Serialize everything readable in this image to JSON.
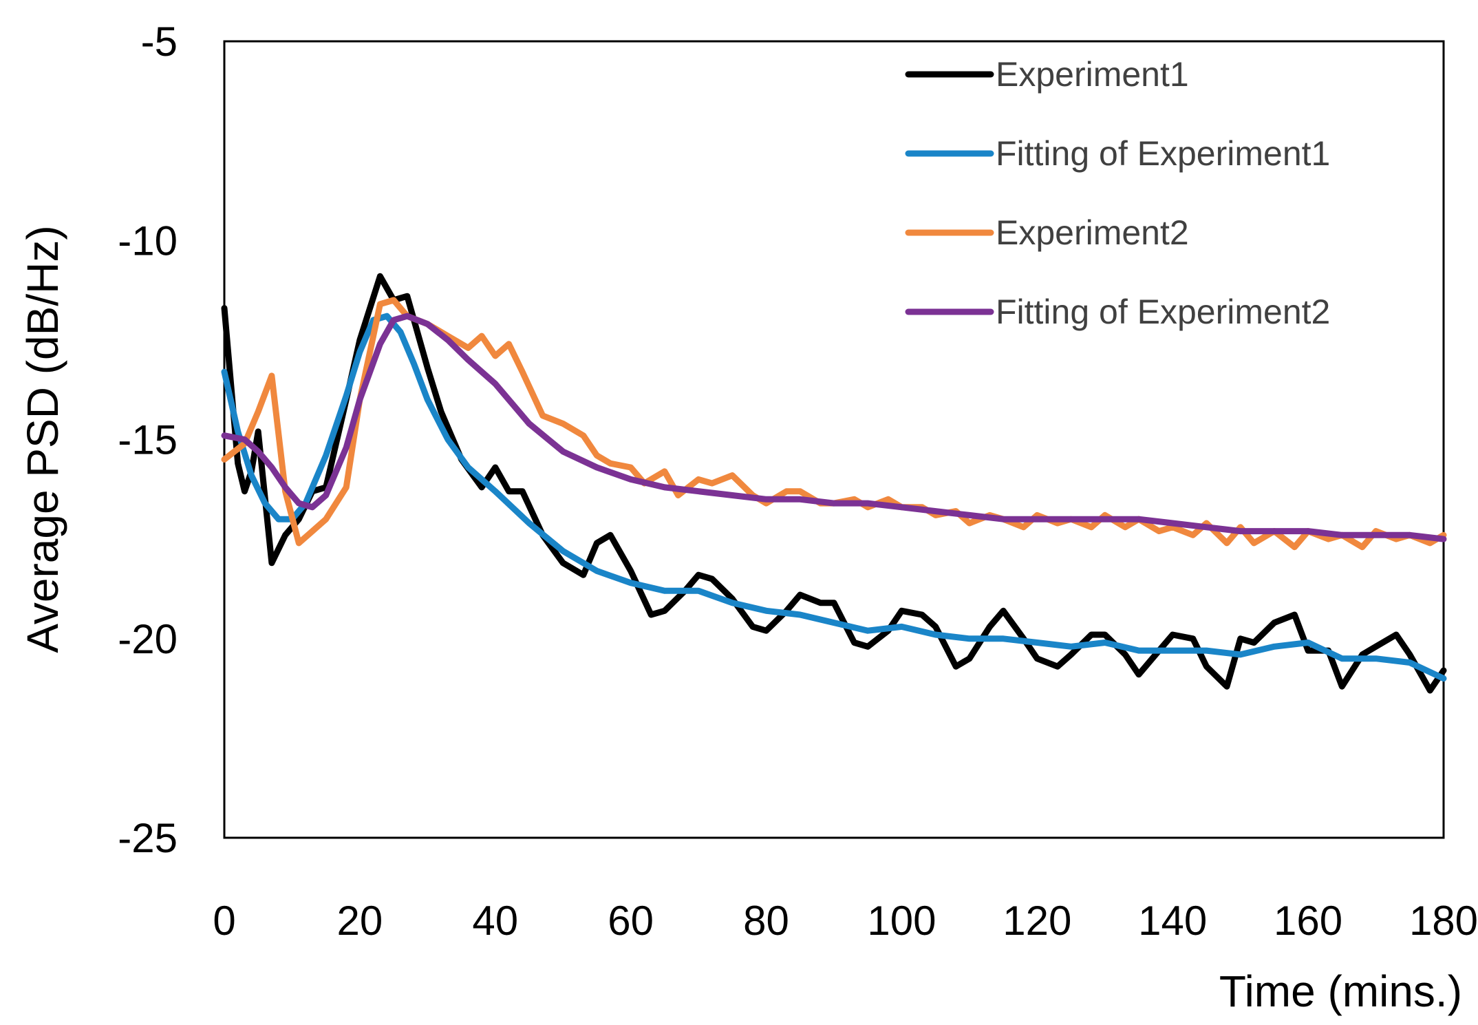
{
  "chart_data": {
    "type": "line",
    "title": "",
    "xlabel": "Time (mins.)",
    "ylabel": "Average PSD (dB/Hz)",
    "xlim": [
      0,
      180
    ],
    "ylim": [
      -25,
      -5
    ],
    "xticks": [
      "0",
      "20",
      "40",
      "60",
      "80",
      "100",
      "120",
      "140",
      "160",
      "180"
    ],
    "yticks": [
      "-5",
      "-10",
      "-15",
      "-20",
      "-25"
    ],
    "grid": false,
    "legend_position": "top-right",
    "series": [
      {
        "name": "Experiment1",
        "color": "#000000",
        "x": [
          0,
          2,
          3,
          4,
          5,
          7,
          9,
          11,
          13,
          15,
          18,
          20,
          23,
          25,
          27,
          30,
          32,
          35,
          38,
          40,
          42,
          44,
          47,
          50,
          53,
          55,
          57,
          60,
          63,
          65,
          68,
          70,
          72,
          75,
          78,
          80,
          83,
          85,
          88,
          90,
          93,
          95,
          98,
          100,
          103,
          105,
          108,
          110,
          113,
          115,
          118,
          120,
          123,
          125,
          128,
          130,
          133,
          135,
          138,
          140,
          143,
          145,
          148,
          150,
          152,
          155,
          158,
          160,
          163,
          165,
          168,
          170,
          173,
          175,
          178,
          180
        ],
        "y": [
          -11.7,
          -15.6,
          -16.3,
          -15.8,
          -14.8,
          -18.1,
          -17.4,
          -17.0,
          -16.3,
          -16.2,
          -14.0,
          -12.5,
          -10.9,
          -11.5,
          -11.4,
          -13.2,
          -14.3,
          -15.5,
          -16.2,
          -15.7,
          -16.3,
          -16.3,
          -17.4,
          -18.1,
          -18.4,
          -17.6,
          -17.4,
          -18.3,
          -19.4,
          -19.3,
          -18.8,
          -18.4,
          -18.5,
          -19.0,
          -19.7,
          -19.8,
          -19.3,
          -18.9,
          -19.1,
          -19.1,
          -20.1,
          -20.2,
          -19.8,
          -19.3,
          -19.4,
          -19.7,
          -20.7,
          -20.5,
          -19.7,
          -19.3,
          -20.0,
          -20.5,
          -20.7,
          -20.4,
          -19.9,
          -19.9,
          -20.4,
          -20.9,
          -20.3,
          -19.9,
          -20.0,
          -20.7,
          -21.2,
          -20.0,
          -20.1,
          -19.6,
          -19.4,
          -20.3,
          -20.3,
          -21.2,
          -20.4,
          -20.2,
          -19.9,
          -20.4,
          -21.3,
          -20.8
        ]
      },
      {
        "name": "Fitting of Experiment1",
        "color": "#1a85c8",
        "x": [
          0,
          2,
          4,
          6,
          8,
          10,
          12,
          15,
          18,
          20,
          22,
          24,
          26,
          28,
          30,
          33,
          36,
          40,
          45,
          50,
          55,
          60,
          65,
          70,
          75,
          80,
          85,
          90,
          95,
          100,
          105,
          110,
          115,
          120,
          125,
          130,
          135,
          140,
          145,
          150,
          155,
          160,
          165,
          170,
          175,
          180
        ],
        "y": [
          -13.3,
          -14.8,
          -15.9,
          -16.6,
          -17.0,
          -17.0,
          -16.6,
          -15.4,
          -13.9,
          -12.8,
          -12.0,
          -11.9,
          -12.3,
          -13.1,
          -14.0,
          -15.0,
          -15.7,
          -16.3,
          -17.1,
          -17.8,
          -18.3,
          -18.6,
          -18.8,
          -18.8,
          -19.1,
          -19.3,
          -19.4,
          -19.6,
          -19.8,
          -19.7,
          -19.9,
          -20.0,
          -20.0,
          -20.1,
          -20.2,
          -20.1,
          -20.3,
          -20.3,
          -20.3,
          -20.4,
          -20.2,
          -20.1,
          -20.5,
          -20.5,
          -20.6,
          -21.0
        ]
      },
      {
        "name": "Experiment2",
        "color": "#f0883e",
        "x": [
          0,
          3,
          5,
          7,
          9,
          11,
          13,
          15,
          18,
          20,
          23,
          25,
          27,
          30,
          33,
          36,
          38,
          40,
          42,
          44,
          47,
          50,
          53,
          55,
          57,
          60,
          62,
          65,
          67,
          70,
          72,
          75,
          78,
          80,
          83,
          85,
          88,
          90,
          93,
          95,
          98,
          100,
          103,
          105,
          108,
          110,
          113,
          115,
          118,
          120,
          123,
          125,
          128,
          130,
          133,
          135,
          138,
          140,
          143,
          145,
          148,
          150,
          152,
          155,
          158,
          160,
          163,
          165,
          168,
          170,
          173,
          175,
          178,
          180
        ],
        "y": [
          -15.5,
          -15.1,
          -14.3,
          -13.4,
          -16.3,
          -17.6,
          -17.3,
          -17.0,
          -16.2,
          -14.0,
          -11.6,
          -11.5,
          -11.9,
          -12.1,
          -12.4,
          -12.7,
          -12.4,
          -12.9,
          -12.6,
          -13.3,
          -14.4,
          -14.6,
          -14.9,
          -15.4,
          -15.6,
          -15.7,
          -16.1,
          -15.8,
          -16.4,
          -16.0,
          -16.1,
          -15.9,
          -16.4,
          -16.6,
          -16.3,
          -16.3,
          -16.6,
          -16.6,
          -16.5,
          -16.7,
          -16.5,
          -16.7,
          -16.7,
          -16.9,
          -16.8,
          -17.1,
          -16.9,
          -17.0,
          -17.2,
          -16.9,
          -17.1,
          -17.0,
          -17.2,
          -16.9,
          -17.2,
          -17.0,
          -17.3,
          -17.2,
          -17.4,
          -17.1,
          -17.6,
          -17.2,
          -17.6,
          -17.3,
          -17.7,
          -17.3,
          -17.5,
          -17.4,
          -17.7,
          -17.3,
          -17.5,
          -17.4,
          -17.6,
          -17.4
        ]
      },
      {
        "name": "Fitting of Experiment2",
        "color": "#7b3294",
        "x": [
          0,
          3,
          5,
          7,
          9,
          11,
          13,
          15,
          18,
          20,
          23,
          25,
          27,
          30,
          33,
          36,
          40,
          45,
          50,
          55,
          60,
          65,
          70,
          75,
          80,
          85,
          90,
          95,
          100,
          105,
          110,
          115,
          120,
          125,
          130,
          135,
          140,
          145,
          150,
          155,
          160,
          165,
          170,
          175,
          180
        ],
        "y": [
          -14.9,
          -15.0,
          -15.3,
          -15.7,
          -16.2,
          -16.6,
          -16.7,
          -16.4,
          -15.2,
          -14.0,
          -12.6,
          -12.0,
          -11.9,
          -12.1,
          -12.5,
          -13.0,
          -13.6,
          -14.6,
          -15.3,
          -15.7,
          -16.0,
          -16.2,
          -16.3,
          -16.4,
          -16.5,
          -16.5,
          -16.6,
          -16.6,
          -16.7,
          -16.8,
          -16.9,
          -17.0,
          -17.0,
          -17.0,
          -17.0,
          -17.0,
          -17.1,
          -17.2,
          -17.3,
          -17.3,
          -17.3,
          -17.4,
          -17.4,
          -17.4,
          -17.5
        ]
      }
    ]
  }
}
